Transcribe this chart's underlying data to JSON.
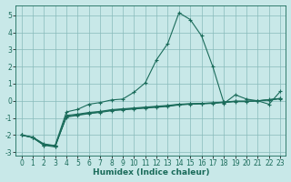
{
  "xlabel": "Humidex (Indice chaleur)",
  "background_color": "#c8e8e8",
  "grid_color": "#88bbbb",
  "line_color": "#1a6b5a",
  "xlim": [
    -0.5,
    23.5
  ],
  "ylim": [
    -3.2,
    5.6
  ],
  "yticks": [
    -3,
    -2,
    -1,
    0,
    1,
    2,
    3,
    4,
    5
  ],
  "xticks": [
    0,
    1,
    2,
    3,
    4,
    5,
    6,
    7,
    8,
    9,
    10,
    11,
    12,
    13,
    14,
    15,
    16,
    17,
    18,
    19,
    20,
    21,
    22,
    23
  ],
  "line_main_x": [
    0,
    1,
    2,
    3,
    4,
    5,
    6,
    7,
    8,
    9,
    10,
    11,
    12,
    13,
    14,
    15,
    16,
    17,
    18,
    19,
    20,
    21,
    22,
    23
  ],
  "line_main_y": [
    -2.0,
    -2.15,
    -2.6,
    -2.6,
    -0.65,
    -0.5,
    -0.2,
    -0.1,
    0.05,
    0.1,
    0.5,
    1.05,
    2.4,
    3.35,
    5.15,
    4.75,
    3.8,
    2.0,
    -0.15,
    0.35,
    0.1,
    0.0,
    -0.2,
    0.55
  ],
  "line2_x": [
    0,
    1,
    2,
    3,
    4,
    5,
    6,
    7,
    8,
    9,
    10,
    11,
    12,
    13,
    14,
    15,
    16,
    17,
    18,
    19,
    20,
    21,
    22,
    23
  ],
  "line2_y": [
    -2.0,
    -2.15,
    -2.6,
    -2.7,
    -0.85,
    -0.78,
    -0.68,
    -0.62,
    -0.52,
    -0.47,
    -0.42,
    -0.37,
    -0.32,
    -0.27,
    -0.2,
    -0.17,
    -0.15,
    -0.12,
    -0.07,
    -0.02,
    -0.02,
    0.0,
    0.05,
    0.12
  ],
  "line3_x": [
    0,
    1,
    2,
    3,
    4,
    5,
    6,
    7,
    8,
    9,
    10,
    11,
    12,
    13,
    14,
    15,
    16,
    17,
    18,
    19,
    20,
    21,
    22,
    23
  ],
  "line3_y": [
    -2.0,
    -2.15,
    -2.55,
    -2.65,
    -0.92,
    -0.82,
    -0.72,
    -0.65,
    -0.55,
    -0.5,
    -0.45,
    -0.4,
    -0.35,
    -0.3,
    -0.22,
    -0.18,
    -0.16,
    -0.13,
    -0.08,
    -0.03,
    -0.03,
    0.0,
    0.06,
    0.13
  ],
  "line4_x": [
    0,
    1,
    2,
    3,
    4,
    5,
    6,
    7,
    8,
    9,
    10,
    11,
    12,
    13,
    14,
    15,
    16,
    17,
    18,
    19,
    20,
    21,
    22,
    23
  ],
  "line4_y": [
    -2.0,
    -2.12,
    -2.52,
    -2.62,
    -0.95,
    -0.85,
    -0.75,
    -0.68,
    -0.58,
    -0.53,
    -0.48,
    -0.43,
    -0.38,
    -0.33,
    -0.24,
    -0.2,
    -0.18,
    -0.15,
    -0.1,
    -0.05,
    -0.05,
    0.0,
    0.07,
    0.14
  ]
}
